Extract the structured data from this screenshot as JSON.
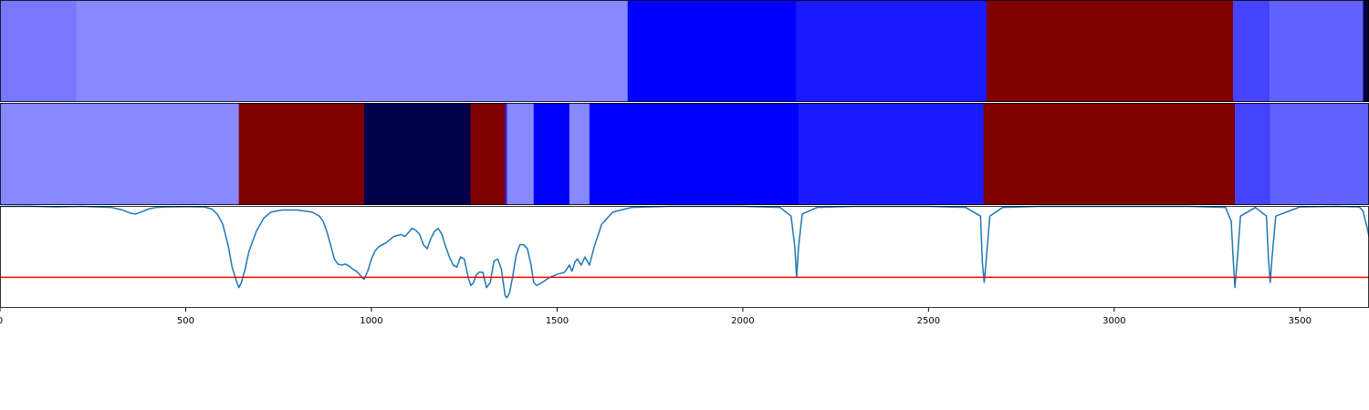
{
  "chart_data": [
    {
      "type": "heatmap",
      "panel": "top-strip",
      "xlim": [
        0,
        3686
      ],
      "segments": [
        {
          "x0": 0,
          "x1": 205,
          "color": "#7777ff"
        },
        {
          "x0": 205,
          "x1": 1690,
          "color": "#8888ff"
        },
        {
          "x0": 1690,
          "x1": 2143,
          "color": "#0000fe"
        },
        {
          "x0": 2143,
          "x1": 2656,
          "color": "#1a1aff"
        },
        {
          "x0": 2656,
          "x1": 3320,
          "color": "#800000"
        },
        {
          "x0": 3320,
          "x1": 3418,
          "color": "#4444ff"
        },
        {
          "x0": 3418,
          "x1": 3670,
          "color": "#6262ff"
        },
        {
          "x0": 3670,
          "x1": 3686,
          "color": "#000044"
        }
      ]
    },
    {
      "type": "heatmap",
      "panel": "middle-strip",
      "xlim": [
        0,
        3686
      ],
      "segments": [
        {
          "x0": 0,
          "x1": 643,
          "color": "#8888ff"
        },
        {
          "x0": 643,
          "x1": 980,
          "color": "#800000"
        },
        {
          "x0": 980,
          "x1": 1267,
          "color": "#000048"
        },
        {
          "x0": 1267,
          "x1": 1360,
          "color": "#800000"
        },
        {
          "x0": 1360,
          "x1": 1365,
          "color": "#2222ff"
        },
        {
          "x0": 1365,
          "x1": 1437,
          "color": "#8888ff"
        },
        {
          "x0": 1437,
          "x1": 1533,
          "color": "#0000fe"
        },
        {
          "x0": 1533,
          "x1": 1587,
          "color": "#8888ff"
        },
        {
          "x0": 1587,
          "x1": 2150,
          "color": "#0000fe"
        },
        {
          "x0": 2150,
          "x1": 2648,
          "color": "#1a1aff"
        },
        {
          "x0": 2648,
          "x1": 3325,
          "color": "#800000"
        },
        {
          "x0": 3325,
          "x1": 3420,
          "color": "#4444ff"
        },
        {
          "x0": 3420,
          "x1": 3686,
          "color": "#6262ff"
        }
      ]
    },
    {
      "type": "line",
      "panel": "spectrum",
      "xlim": [
        0,
        3686
      ],
      "ylim": [
        0,
        1
      ],
      "x_ticks": [
        0,
        500,
        1000,
        1500,
        2000,
        2500,
        3000,
        3500
      ],
      "x_tick_labels": [
        "0",
        "500",
        "1000",
        "1500",
        "2000",
        "2500",
        "3000",
        "3500"
      ],
      "threshold": {
        "y": 0.3,
        "color": "#ff0000"
      },
      "series": [
        {
          "color": "#1f77b4",
          "x": [
            0,
            80,
            150,
            220,
            260,
            300,
            330,
            350,
            365,
            380,
            400,
            420,
            450,
            500,
            550,
            570,
            585,
            600,
            615,
            625,
            635,
            643,
            650,
            660,
            670,
            690,
            710,
            730,
            760,
            800,
            840,
            860,
            870,
            880,
            890,
            900,
            910,
            920,
            930,
            940,
            950,
            960,
            970,
            980,
            990,
            1000,
            1010,
            1020,
            1040,
            1060,
            1080,
            1090,
            1100,
            1110,
            1120,
            1130,
            1140,
            1150,
            1160,
            1170,
            1180,
            1190,
            1200,
            1210,
            1220,
            1230,
            1240,
            1250,
            1256,
            1262,
            1268,
            1275,
            1282,
            1290,
            1300,
            1310,
            1320,
            1330,
            1340,
            1350,
            1360,
            1365,
            1372,
            1380,
            1390,
            1400,
            1410,
            1420,
            1430,
            1437,
            1445,
            1460,
            1480,
            1500,
            1520,
            1533,
            1540,
            1548,
            1555,
            1565,
            1575,
            1587,
            1600,
            1620,
            1650,
            1700,
            1800,
            1900,
            2000,
            2100,
            2130,
            2140,
            2145,
            2150,
            2160,
            2200,
            2300,
            2400,
            2500,
            2600,
            2640,
            2645,
            2650,
            2655,
            2665,
            2700,
            2800,
            2900,
            3000,
            3100,
            3200,
            3300,
            3315,
            3320,
            3325,
            3332,
            3340,
            3380,
            3410,
            3415,
            3420,
            3425,
            3435,
            3500,
            3600,
            3660,
            3670,
            3680,
            3686
          ],
          "y": [
            0.995,
            0.997,
            0.99,
            0.995,
            0.99,
            0.985,
            0.96,
            0.93,
            0.92,
            0.94,
            0.97,
            0.985,
            0.99,
            0.992,
            0.99,
            0.97,
            0.92,
            0.82,
            0.6,
            0.4,
            0.28,
            0.2,
            0.25,
            0.38,
            0.55,
            0.75,
            0.88,
            0.94,
            0.96,
            0.96,
            0.94,
            0.9,
            0.85,
            0.75,
            0.62,
            0.48,
            0.43,
            0.42,
            0.43,
            0.41,
            0.38,
            0.36,
            0.32,
            0.28,
            0.36,
            0.48,
            0.56,
            0.6,
            0.64,
            0.7,
            0.72,
            0.7,
            0.74,
            0.78,
            0.76,
            0.72,
            0.62,
            0.58,
            0.68,
            0.75,
            0.78,
            0.72,
            0.6,
            0.5,
            0.42,
            0.4,
            0.5,
            0.48,
            0.38,
            0.28,
            0.22,
            0.25,
            0.32,
            0.35,
            0.35,
            0.2,
            0.25,
            0.46,
            0.48,
            0.38,
            0.12,
            0.1,
            0.15,
            0.3,
            0.52,
            0.62,
            0.62,
            0.58,
            0.42,
            0.25,
            0.22,
            0.25,
            0.3,
            0.33,
            0.35,
            0.42,
            0.36,
            0.45,
            0.48,
            0.42,
            0.5,
            0.42,
            0.6,
            0.82,
            0.94,
            0.985,
            0.995,
            0.996,
            0.995,
            0.985,
            0.9,
            0.6,
            0.3,
            0.6,
            0.92,
            0.985,
            0.995,
            0.996,
            0.995,
            0.985,
            0.9,
            0.45,
            0.25,
            0.45,
            0.9,
            0.985,
            0.995,
            0.996,
            0.995,
            0.995,
            0.995,
            0.985,
            0.85,
            0.5,
            0.2,
            0.5,
            0.9,
            0.985,
            0.9,
            0.5,
            0.25,
            0.5,
            0.9,
            0.99,
            0.995,
            0.99,
            0.95,
            0.8,
            0.7
          ]
        }
      ]
    }
  ]
}
